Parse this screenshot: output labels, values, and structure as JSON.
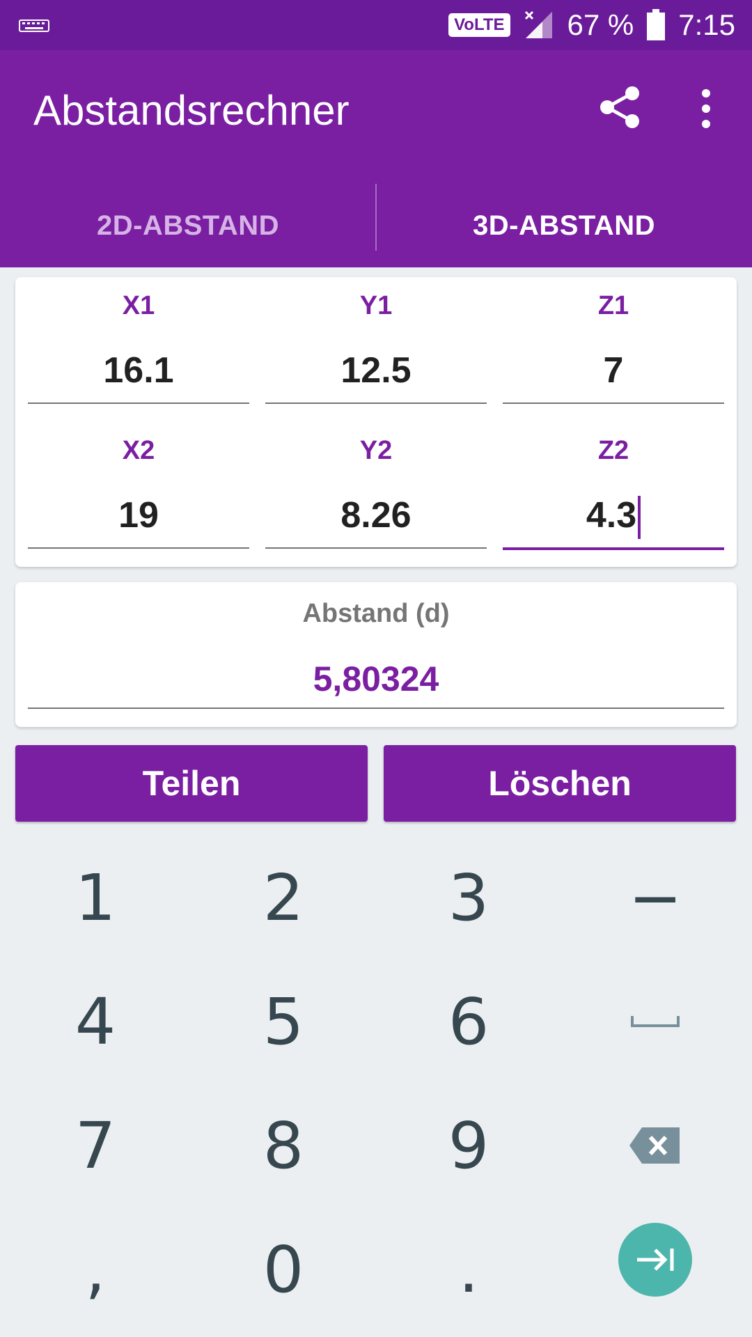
{
  "status_bar": {
    "volte": "VoLTE",
    "battery": "67 %",
    "time": "7:15"
  },
  "app": {
    "title": "Abstandsrechner",
    "tabs": [
      {
        "label": "2D-ABSTAND",
        "active": false
      },
      {
        "label": "3D-ABSTAND",
        "active": true
      }
    ]
  },
  "fields": {
    "x1": {
      "label": "X1",
      "value": "16.1"
    },
    "y1": {
      "label": "Y1",
      "value": "12.5"
    },
    "z1": {
      "label": "Z1",
      "value": "7"
    },
    "x2": {
      "label": "X2",
      "value": "19"
    },
    "y2": {
      "label": "Y2",
      "value": "8.26"
    },
    "z2": {
      "label": "Z2",
      "value": "4.3",
      "focused": true
    }
  },
  "result": {
    "label": "Abstand (d)",
    "value": "5,80324"
  },
  "buttons": {
    "share": "Teilen",
    "clear": "Löschen"
  },
  "keyboard": {
    "keys": [
      "1",
      "2",
      "3",
      "−",
      "4",
      "5",
      "6",
      "space-icon",
      "7",
      "8",
      "9",
      "backspace-icon",
      ",",
      "0",
      ".",
      "next-field-icon"
    ]
  },
  "colors": {
    "status_bar": "#6a1b9a",
    "primary": "#7b1fa2",
    "accent_teal": "#4db6ac",
    "keyboard_bg": "#eceff1"
  }
}
